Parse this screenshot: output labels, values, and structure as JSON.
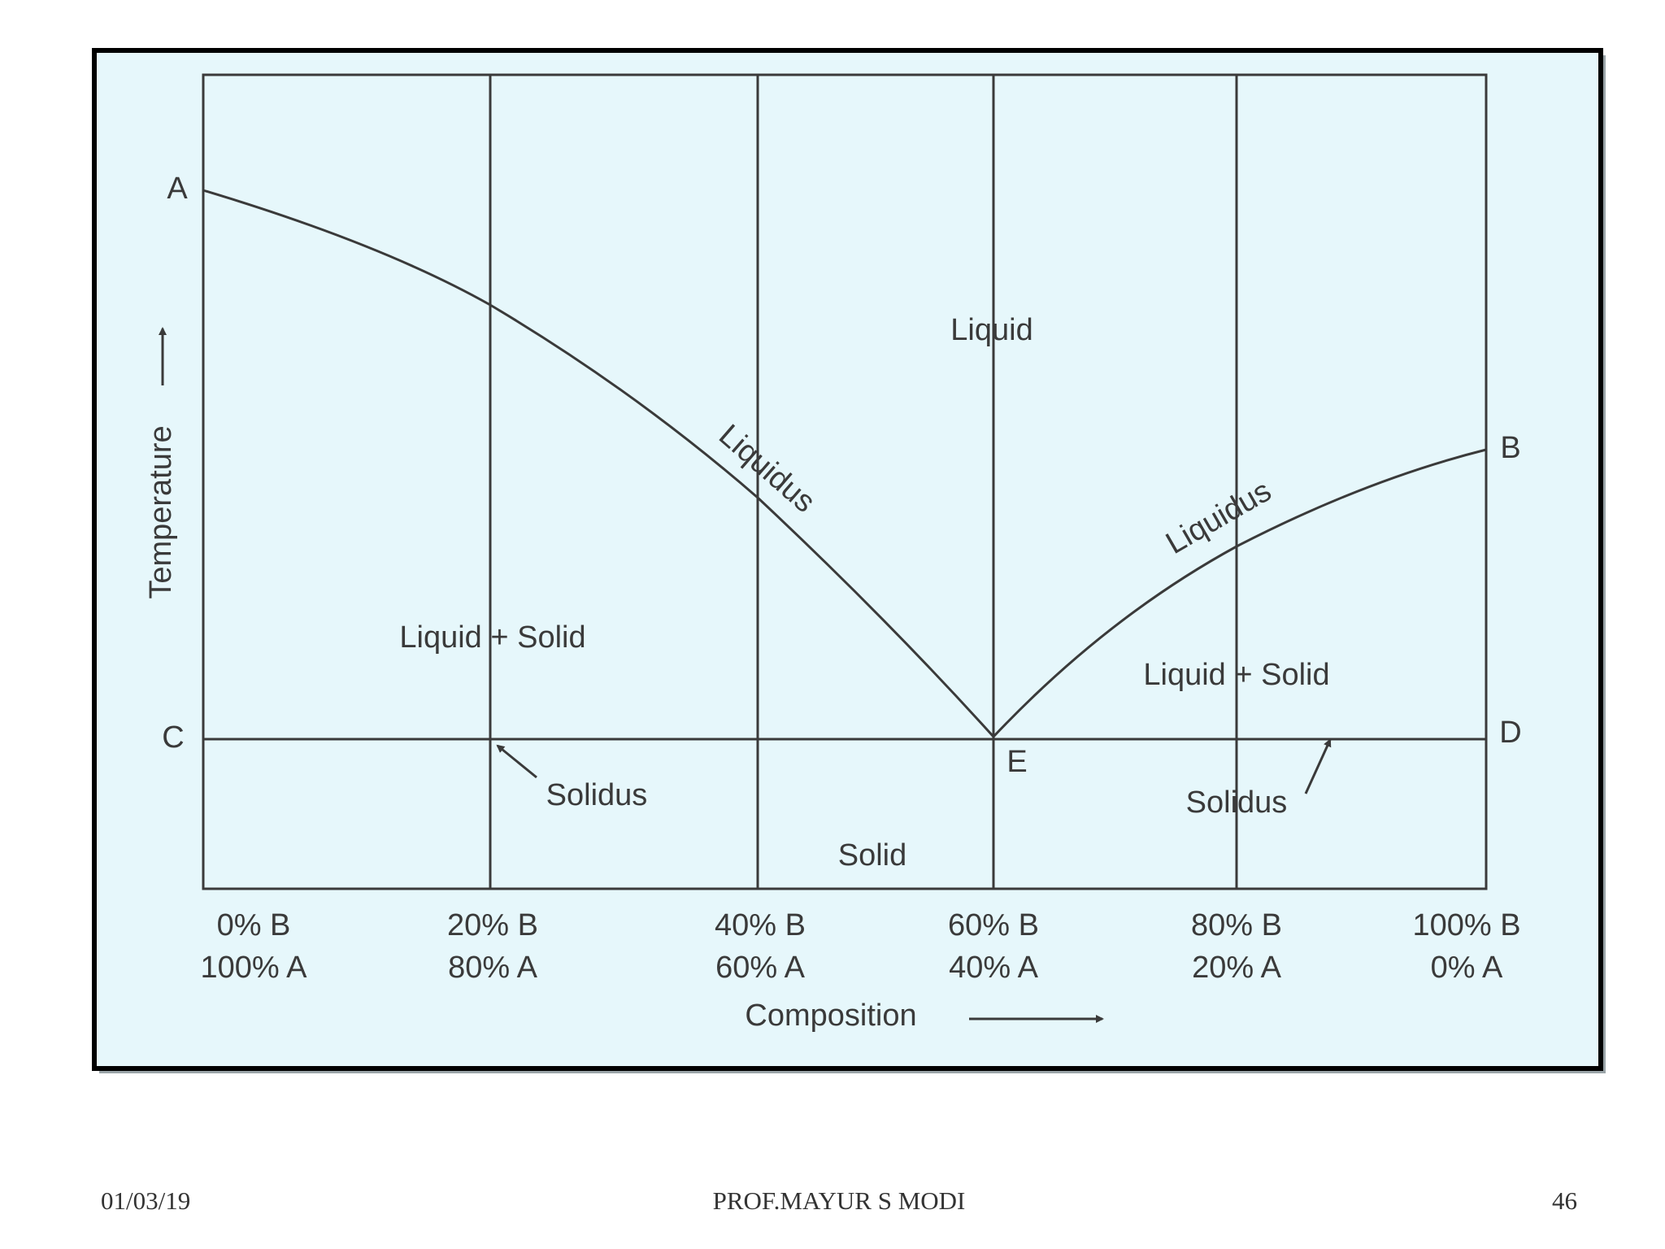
{
  "diagram": {
    "points": {
      "A": "A",
      "B": "B",
      "C": "C",
      "D": "D",
      "E": "E"
    },
    "regions": {
      "liquid": "Liquid",
      "liquid_solid_left": "Liquid + Solid",
      "liquid_solid_right": "Liquid + Solid",
      "solid": "Solid"
    },
    "curves": {
      "liquidus_left": "Liquidus",
      "liquidus_right": "Liquidus",
      "solidus_left": "Solidus",
      "solidus_right": "Solidus"
    },
    "y_axis_label": "Temperature",
    "x_axis_label": "Composition",
    "composition_ticks": [
      {
        "b": "0% B",
        "a": "100% A"
      },
      {
        "b": "20% B",
        "a": "80% A"
      },
      {
        "b": "40% B",
        "a": "60% A"
      },
      {
        "b": "60% B",
        "a": "40% A"
      },
      {
        "b": "80% B",
        "a": "20% A"
      },
      {
        "b": "100% B",
        "a": "0% A"
      }
    ]
  },
  "footer": {
    "date": "01/03/19",
    "author": "PROF.MAYUR S MODI",
    "page": "46"
  }
}
